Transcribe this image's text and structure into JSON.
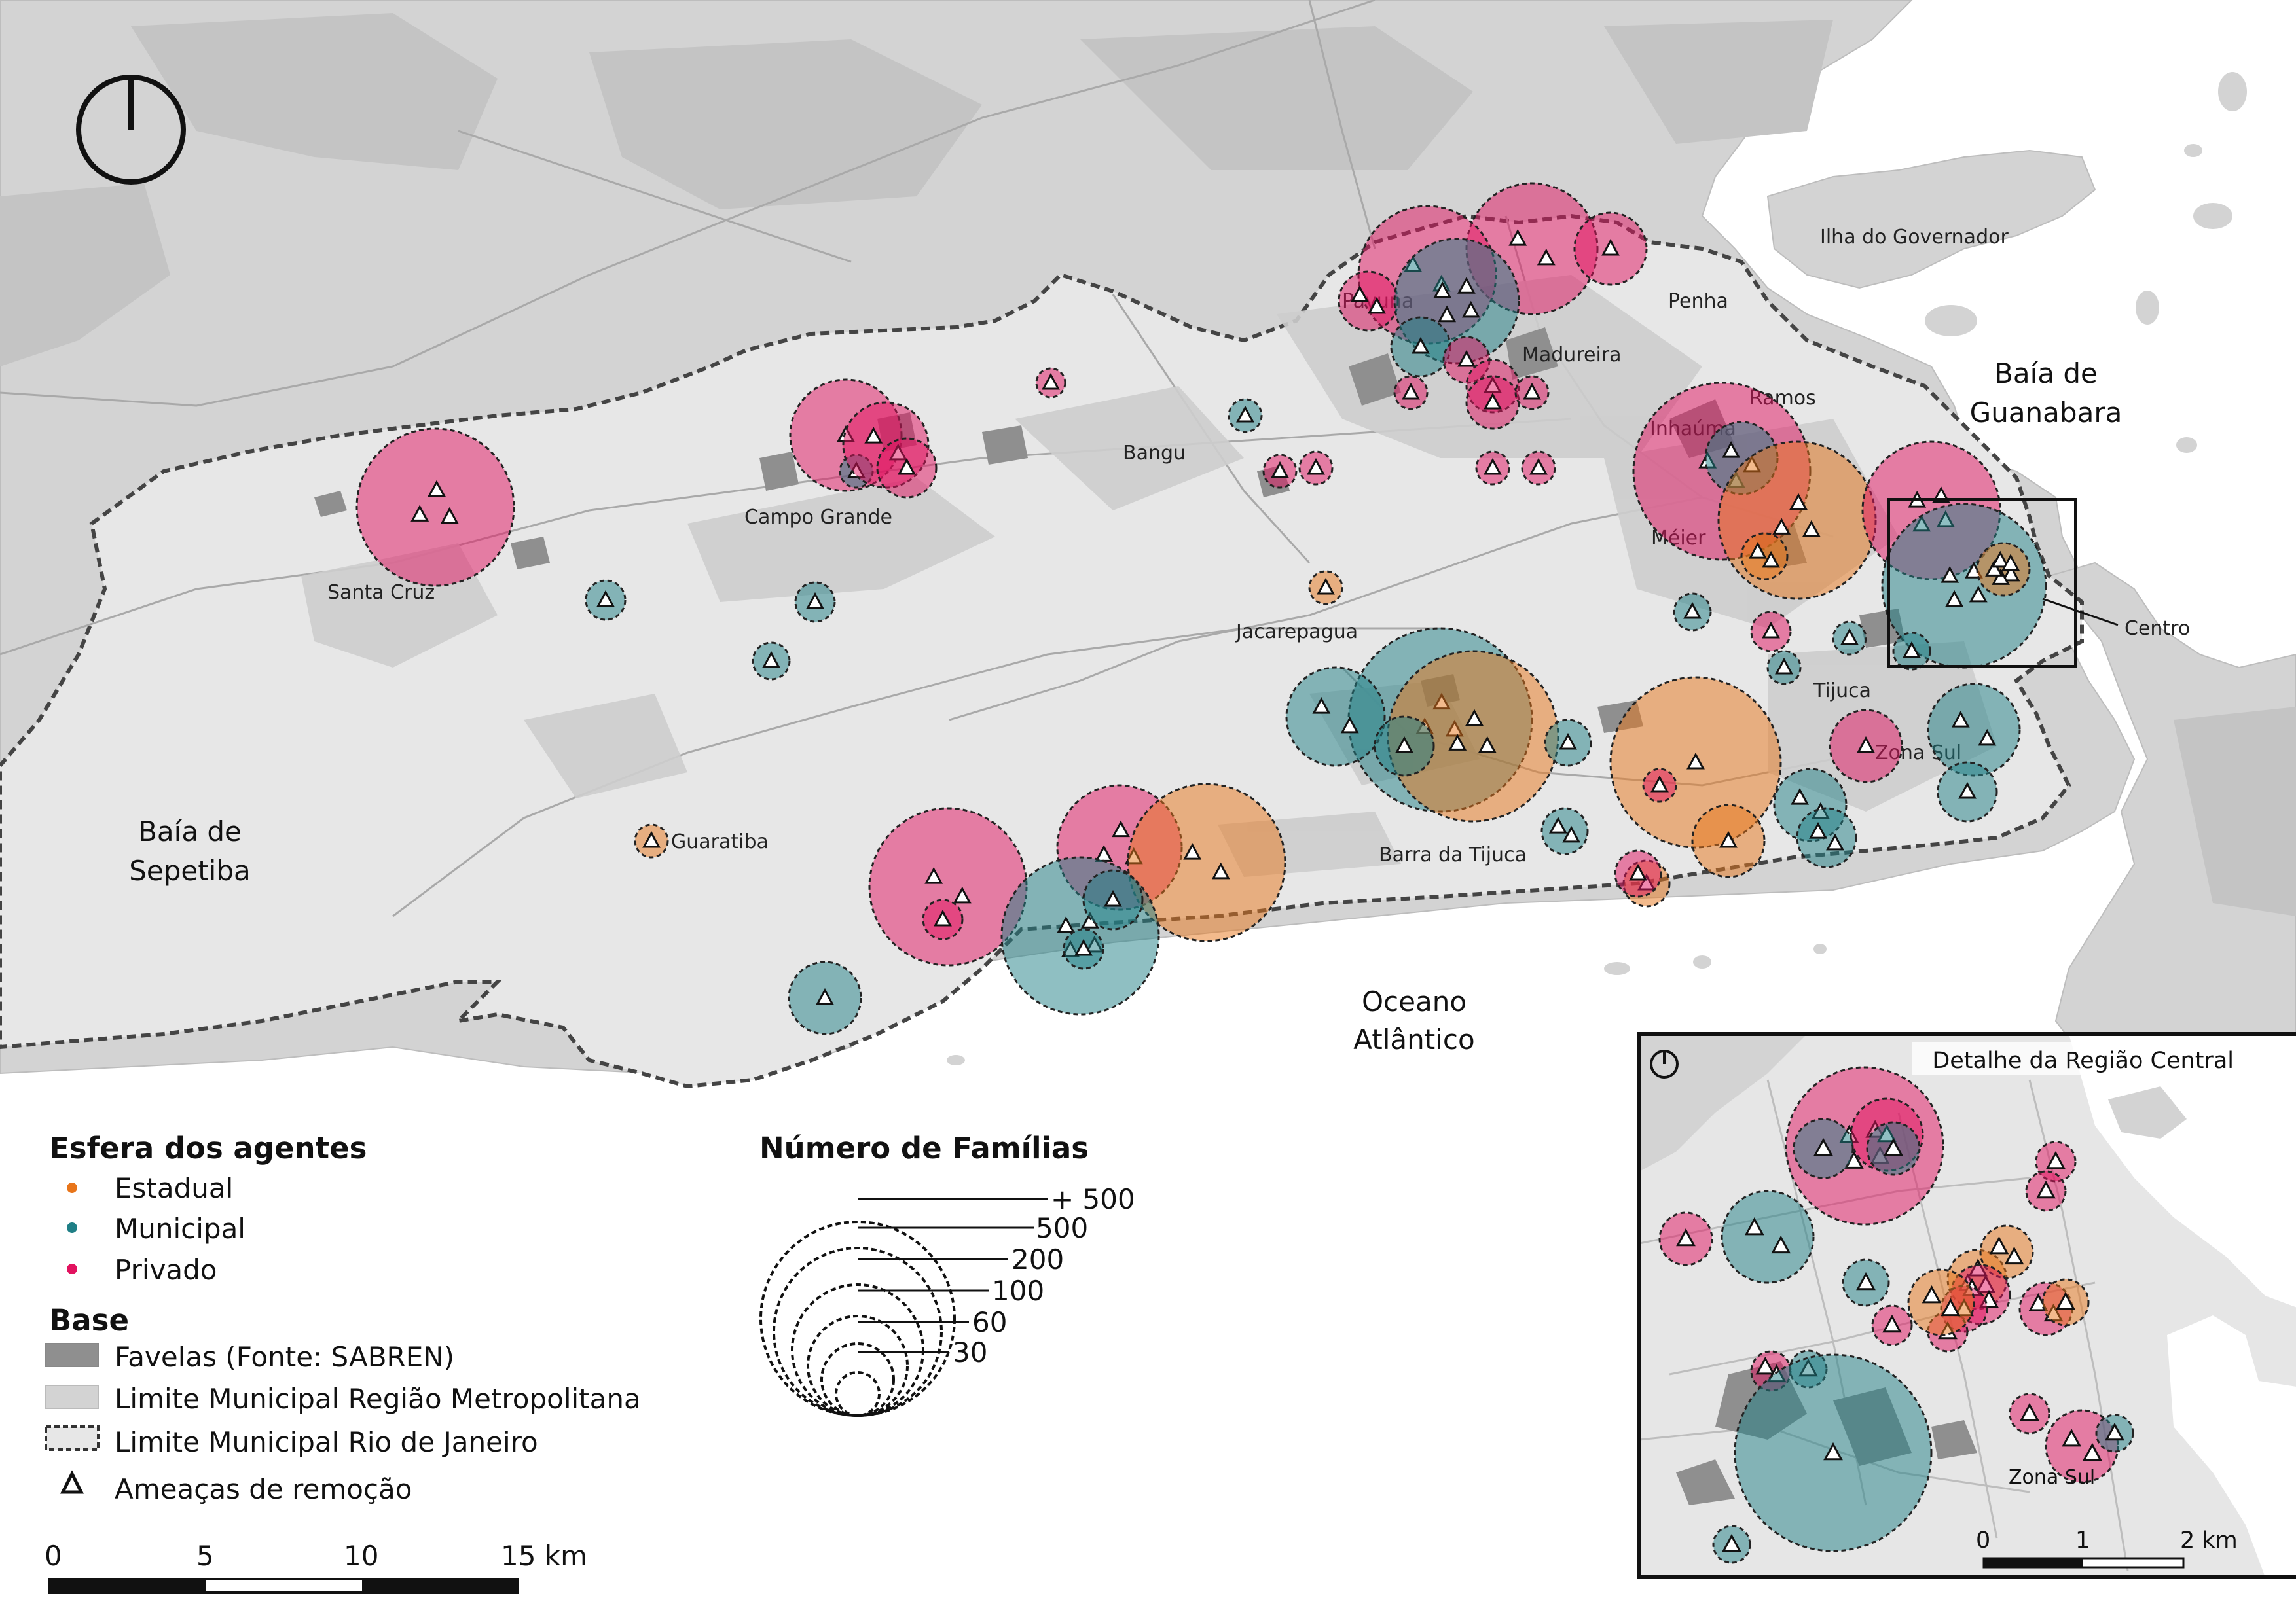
{
  "colors": {
    "estadual": "#e8751a",
    "municipal": "#1f7f86",
    "privado": "#e2125f",
    "favelas": "#8f8f8f",
    "metro": "#d3d3d3",
    "rio": "#e7e7e7",
    "water": "#ffffff"
  },
  "place_labels": {
    "santa_cruz": "Santa Cruz",
    "campo_grande": "Campo Grande",
    "bangu": "Bangu",
    "pavuna": "Pavuna",
    "madureira": "Madureira",
    "penha": "Penha",
    "ilha": "Ilha do Governador",
    "inhauma": "Inhaúma",
    "ramos": "Ramos",
    "meier": "Méier",
    "jacarepagua": "Jacarepagua",
    "centro": "Centro",
    "tijuca": "Tijuca",
    "zona_sul": "Zona Sul",
    "guaratiba": "Guaratiba",
    "barra": "Barra da Tijuca"
  },
  "water_labels": {
    "guanabara_1": "Baía de",
    "guanabara_2": "Guanabara",
    "sepetiba_1": "Baía de",
    "sepetiba_2": "Sepetiba",
    "oceano_1": "Oceano",
    "oceano_2": "Atlântico"
  },
  "legend": {
    "title": "Esfera dos agentes",
    "estadual": "Estadual",
    "municipal": "Municipal",
    "privado": "Privado",
    "base_title": "Base",
    "favelas": "Favelas (Fonte: SABREN)",
    "metro": "Limite Municipal Região Metropolitana",
    "rio": "Limite Municipal Rio de Janeiro",
    "ameacas": "Ameaças de remoção"
  },
  "size_legend": {
    "title": "Número de Famílias",
    "labels": [
      "+ 500",
      "500",
      "200",
      "100",
      "60",
      "30"
    ]
  },
  "scalebar": {
    "t0": "0",
    "t5": "5",
    "t10": "10",
    "t15": "15 km"
  },
  "inset": {
    "title": "Detalhe da Região Central",
    "zona_sul": "Zona Sul",
    "t0": "0",
    "t1": "1",
    "t2": "2 km"
  },
  "circles": [
    {
      "s": "p",
      "r": 1.0,
      "t": 2
    },
    {
      "s": "p",
      "r": 1.05,
      "t": 2
    },
    {
      "s": "p",
      "r": 0.55,
      "t": 1
    },
    {
      "s": "p",
      "r": 0.45,
      "t": 2
    },
    {
      "s": "p",
      "r": 0.22,
      "t": 1
    },
    {
      "s": "m",
      "r": 0.25,
      "t": 1
    },
    {
      "s": "p",
      "r": 0.85,
      "t": 1
    },
    {
      "s": "m",
      "r": 0.25,
      "t": 1
    },
    {
      "s": "p",
      "r": 0.25,
      "t": 1
    },
    {
      "s": "p",
      "r": 0.25,
      "t": 1
    },
    {
      "s": "m",
      "r": 0.3,
      "t": 1
    },
    {
      "s": "m",
      "r": 0.3,
      "t": 1
    },
    {
      "s": "m",
      "r": 0.28,
      "t": 1
    },
    {
      "s": "e",
      "r": 0.25,
      "t": 1
    },
    {
      "s": "e",
      "r": 0.25,
      "t": 1
    },
    {
      "s": "p",
      "r": 1.2,
      "t": 3
    },
    {
      "s": "p",
      "r": 0.65,
      "t": 2
    },
    {
      "s": "p",
      "r": 0.45,
      "t": 1
    },
    {
      "s": "m",
      "r": 0.95,
      "t": 4
    },
    {
      "s": "m",
      "r": 0.45,
      "t": 1
    },
    {
      "s": "p",
      "r": 0.35,
      "t": 1
    },
    {
      "s": "p",
      "r": 0.4,
      "t": 1
    },
    {
      "s": "p",
      "r": 0.4,
      "t": 1
    },
    {
      "s": "p",
      "r": 0.25,
      "t": 1
    },
    {
      "s": "p",
      "r": 0.25,
      "t": 1
    },
    {
      "s": "p",
      "r": 0.25,
      "t": 1
    },
    {
      "s": "p",
      "r": 0.25,
      "t": 1
    },
    {
      "s": "p",
      "r": 1.35,
      "t": 2
    },
    {
      "s": "m",
      "r": 0.55,
      "t": 2
    },
    {
      "s": "e",
      "r": 1.2,
      "t": 3
    },
    {
      "s": "e",
      "r": 0.35,
      "t": 2
    },
    {
      "s": "p",
      "r": 1.05,
      "t": 4
    },
    {
      "s": "m",
      "r": 1.25,
      "t": 4
    },
    {
      "s": "e",
      "r": 0.4,
      "t": 5
    },
    {
      "s": "m",
      "r": 0.28,
      "t": 1
    },
    {
      "s": "p",
      "r": 0.3,
      "t": 1
    },
    {
      "s": "m",
      "r": 0.25,
      "t": 1
    },
    {
      "s": "m",
      "r": 0.25,
      "t": 1
    },
    {
      "s": "m",
      "r": 0.28,
      "t": 1
    },
    {
      "s": "m",
      "r": 0.7,
      "t": 2
    },
    {
      "s": "p",
      "r": 0.55,
      "t": 1
    },
    {
      "s": "m",
      "r": 0.45,
      "t": 1
    },
    {
      "s": "m",
      "r": 1.4,
      "t": 3
    },
    {
      "s": "e",
      "r": 1.3,
      "t": 3
    },
    {
      "s": "m",
      "r": 0.75,
      "t": 2
    },
    {
      "s": "m",
      "r": 0.45,
      "t": 1
    },
    {
      "s": "m",
      "r": 0.35,
      "t": 1
    },
    {
      "s": "e",
      "r": 1.3,
      "t": 1
    },
    {
      "s": "p",
      "r": 0.25,
      "t": 1
    },
    {
      "s": "e",
      "r": 0.55,
      "t": 1
    },
    {
      "s": "m",
      "r": 0.55,
      "t": 2
    },
    {
      "s": "m",
      "r": 0.45,
      "t": 2
    },
    {
      "s": "m",
      "r": 0.35,
      "t": 2
    },
    {
      "s": "e",
      "r": 0.35,
      "t": 1
    },
    {
      "s": "p",
      "r": 0.35,
      "t": 1
    },
    {
      "s": "p",
      "r": 1.2,
      "t": 2
    },
    {
      "s": "p",
      "r": 0.3,
      "t": 1
    },
    {
      "s": "p",
      "r": 0.95,
      "t": 3
    },
    {
      "s": "e",
      "r": 1.2,
      "t": 2
    },
    {
      "s": "m",
      "r": 1.2,
      "t": 4
    },
    {
      "s": "m",
      "r": 0.45,
      "t": 1
    },
    {
      "s": "m",
      "r": 0.3,
      "t": 1
    },
    {
      "s": "m",
      "r": 0.55,
      "t": 1
    }
  ]
}
